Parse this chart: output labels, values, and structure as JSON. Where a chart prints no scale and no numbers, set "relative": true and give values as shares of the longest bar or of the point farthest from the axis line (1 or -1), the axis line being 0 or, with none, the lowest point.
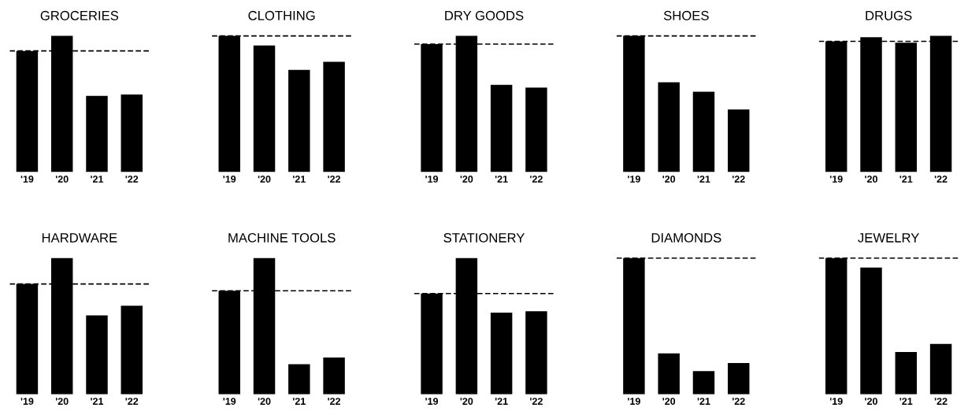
{
  "chart_data": [
    {
      "type": "bar",
      "title": "GROCERIES",
      "relative": true,
      "categories": [
        "'19",
        "'20",
        "'21",
        "'22"
      ],
      "values": [
        0.89,
        1,
        0.56,
        0.57
      ],
      "color": "#000000",
      "ref_lines": [
        {
          "axis": "y",
          "value": 0.89,
          "line_style": "dashed",
          "color": "#000000"
        }
      ]
    },
    {
      "type": "bar",
      "title": "CLOTHING",
      "relative": true,
      "categories": [
        "'19",
        "'20",
        "'21",
        "'22"
      ],
      "values": [
        1,
        0.93,
        0.75,
        0.81
      ],
      "color": "#000000",
      "ref_lines": [
        {
          "axis": "y",
          "value": 1,
          "line_style": "dashed",
          "color": "#000000"
        }
      ]
    },
    {
      "type": "bar",
      "title": "DRY GOODS",
      "relative": true,
      "categories": [
        "'19",
        "'20",
        "'21",
        "'22"
      ],
      "values": [
        0.94,
        1,
        0.64,
        0.62
      ],
      "color": "#000000",
      "ref_lines": [
        {
          "axis": "y",
          "value": 0.94,
          "line_style": "dashed",
          "color": "#000000"
        }
      ]
    },
    {
      "type": "bar",
      "title": "SHOES",
      "relative": true,
      "categories": [
        "'19",
        "'20",
        "'21",
        "'22"
      ],
      "values": [
        1,
        0.66,
        0.59,
        0.46
      ],
      "color": "#000000",
      "ref_lines": [
        {
          "axis": "y",
          "value": 1,
          "line_style": "dashed",
          "color": "#000000"
        }
      ]
    },
    {
      "type": "bar",
      "title": "DRUGS",
      "relative": true,
      "categories": [
        "'19",
        "'20",
        "'21",
        "'22"
      ],
      "values": [
        0.96,
        0.99,
        0.95,
        1
      ],
      "color": "#000000",
      "ref_lines": [
        {
          "axis": "y",
          "value": 0.96,
          "line_style": "dashed",
          "color": "#000000"
        }
      ]
    },
    {
      "type": "bar",
      "title": "HARDWARE",
      "relative": true,
      "categories": [
        "'19",
        "'20",
        "'21",
        "'22"
      ],
      "values": [
        0.81,
        1,
        0.58,
        0.65
      ],
      "color": "#000000",
      "ref_lines": [
        {
          "axis": "y",
          "value": 0.81,
          "line_style": "dashed",
          "color": "#000000"
        }
      ]
    },
    {
      "type": "bar",
      "title": "MACHINE TOOLS",
      "relative": true,
      "categories": [
        "'19",
        "'20",
        "'21",
        "'22"
      ],
      "values": [
        0.76,
        1,
        0.22,
        0.27
      ],
      "color": "#000000",
      "ref_lines": [
        {
          "axis": "y",
          "value": 0.76,
          "line_style": "dashed",
          "color": "#000000"
        }
      ]
    },
    {
      "type": "bar",
      "title": "STATIONERY",
      "relative": true,
      "categories": [
        "'19",
        "'20",
        "'21",
        "'22"
      ],
      "values": [
        0.74,
        1,
        0.6,
        0.61
      ],
      "color": "#000000",
      "ref_lines": [
        {
          "axis": "y",
          "value": 0.74,
          "line_style": "dashed",
          "color": "#000000"
        }
      ]
    },
    {
      "type": "bar",
      "title": "DIAMONDS",
      "relative": true,
      "categories": [
        "'19",
        "'20",
        "'21",
        "'22"
      ],
      "values": [
        1,
        0.3,
        0.17,
        0.23
      ],
      "color": "#000000",
      "ref_lines": [
        {
          "axis": "y",
          "value": 1,
          "line_style": "dashed",
          "color": "#000000"
        }
      ]
    },
    {
      "type": "bar",
      "title": "JEWELRY",
      "relative": true,
      "categories": [
        "'19",
        "'20",
        "'21",
        "'22"
      ],
      "values": [
        1,
        0.93,
        0.31,
        0.37
      ],
      "color": "#000000",
      "ref_lines": [
        {
          "axis": "y",
          "value": 1,
          "line_style": "dashed",
          "color": "#000000"
        }
      ]
    }
  ]
}
